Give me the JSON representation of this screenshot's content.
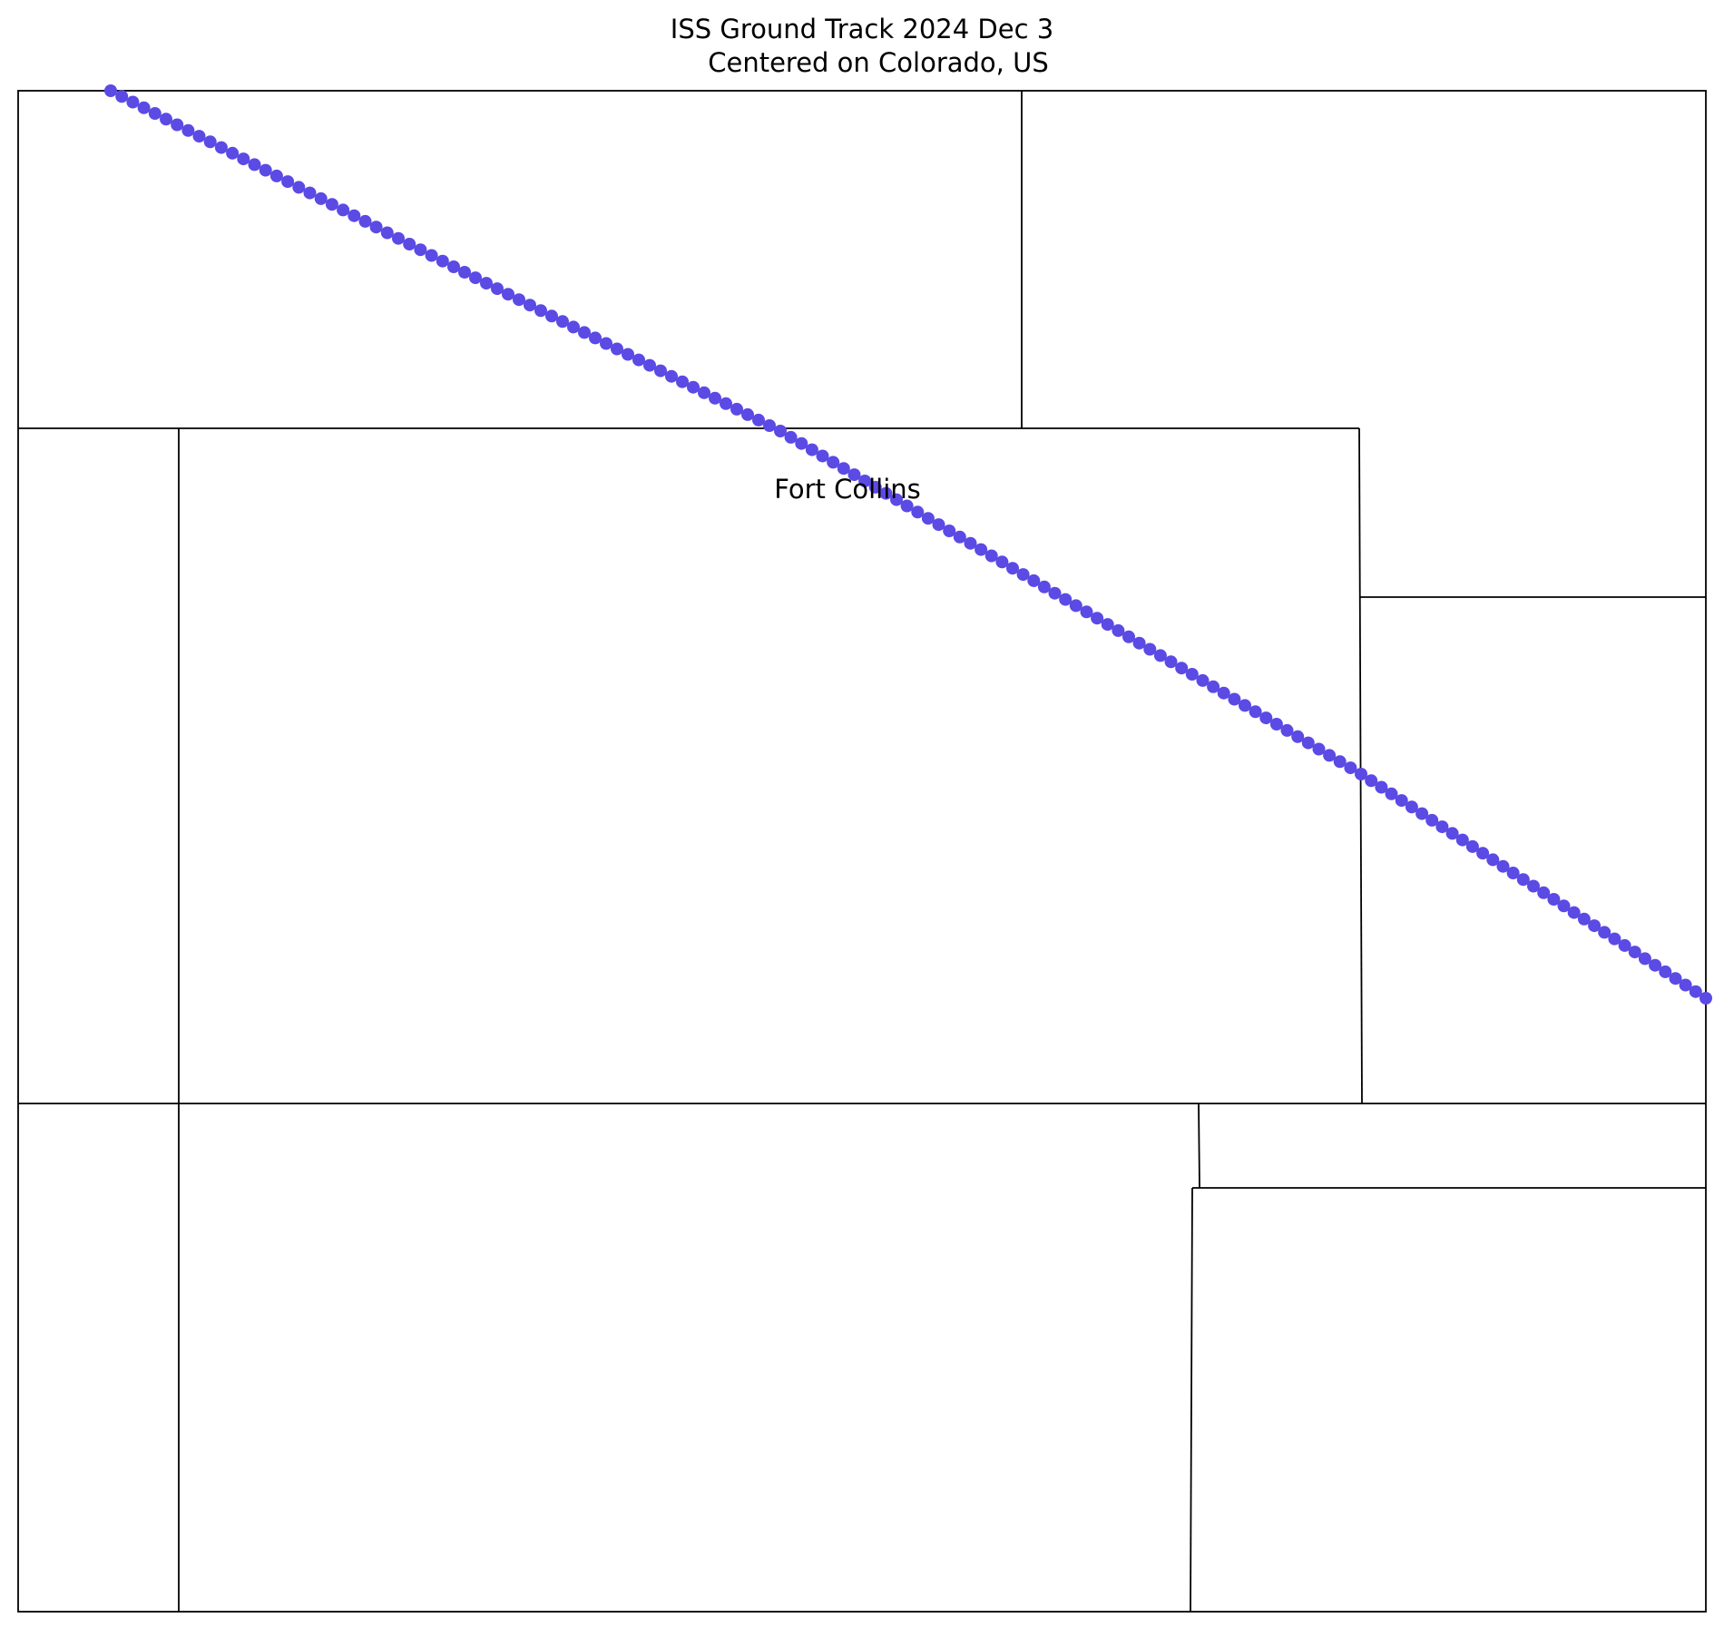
{
  "title": {
    "line1": "ISS Ground Track 2024 Dec 3",
    "line2": "Centered on Colorado, US"
  },
  "city": {
    "name": "Fort Collins"
  },
  "track": {
    "color": "#5b4ae4",
    "marker": "filled-circle"
  }
}
